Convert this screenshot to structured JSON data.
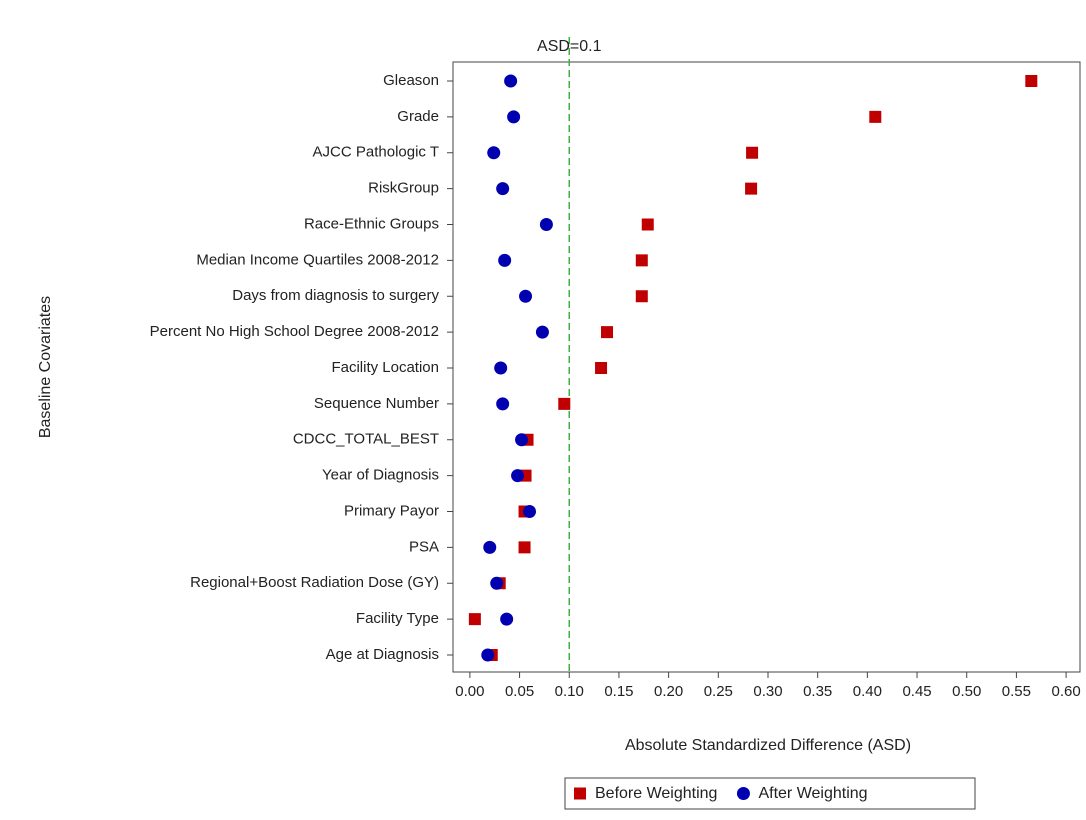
{
  "chart_data": {
    "type": "dot",
    "x_label": "Absolute Standardized Difference (ASD)",
    "y_label": "Baseline Covariates",
    "categories": [
      "Gleason",
      "Grade",
      "AJCC Pathologic T",
      "RiskGroup",
      "Race-Ethnic Groups",
      "Median Income Quartiles 2008-2012",
      "Days from diagnosis to surgery",
      "Percent No High School Degree 2008-2012",
      "Facility Location",
      "Sequence Number",
      "CDCC_TOTAL_BEST",
      "Year of Diagnosis",
      "Primary Payor",
      "PSA",
      "Regional+Boost Radiation Dose (GY)",
      "Facility Type",
      "Age at Diagnosis"
    ],
    "series": [
      {
        "name": "Before Weighting",
        "color": "#c00000",
        "marker": "square",
        "values": [
          0.565,
          0.408,
          0.284,
          0.283,
          0.179,
          0.173,
          0.173,
          0.138,
          0.132,
          0.095,
          0.058,
          0.056,
          0.055,
          0.055,
          0.03,
          0.005,
          0.022
        ]
      },
      {
        "name": "After Weighting",
        "color": "#0000b0",
        "marker": "circle",
        "values": [
          0.041,
          0.044,
          0.024,
          0.033,
          0.077,
          0.035,
          0.056,
          0.073,
          0.031,
          0.033,
          0.052,
          0.048,
          0.06,
          0.02,
          0.027,
          0.037,
          0.018
        ]
      }
    ],
    "xlim": [
      -0.017,
      0.614
    ],
    "xticks": [
      {
        "value": 0,
        "label": "0.00"
      },
      {
        "value": 0.05,
        "label": "0.05"
      },
      {
        "value": 0.1,
        "label": "0.10"
      },
      {
        "value": 0.15,
        "label": "0.15"
      },
      {
        "value": 0.2,
        "label": "0.20"
      },
      {
        "value": 0.25,
        "label": "0.25"
      },
      {
        "value": 0.3,
        "label": "0.30"
      },
      {
        "value": 0.35,
        "label": "0.35"
      },
      {
        "value": 0.4,
        "label": "0.40"
      },
      {
        "value": 0.45,
        "label": "0.45"
      },
      {
        "value": 0.5,
        "label": "0.50"
      },
      {
        "value": 0.55,
        "label": "0.55"
      },
      {
        "value": 0.6,
        "label": "0.60"
      }
    ],
    "reference_line": {
      "value": 0.1,
      "label": "ASD=0.1",
      "color": "#3cb043"
    },
    "legend": "bottom"
  }
}
